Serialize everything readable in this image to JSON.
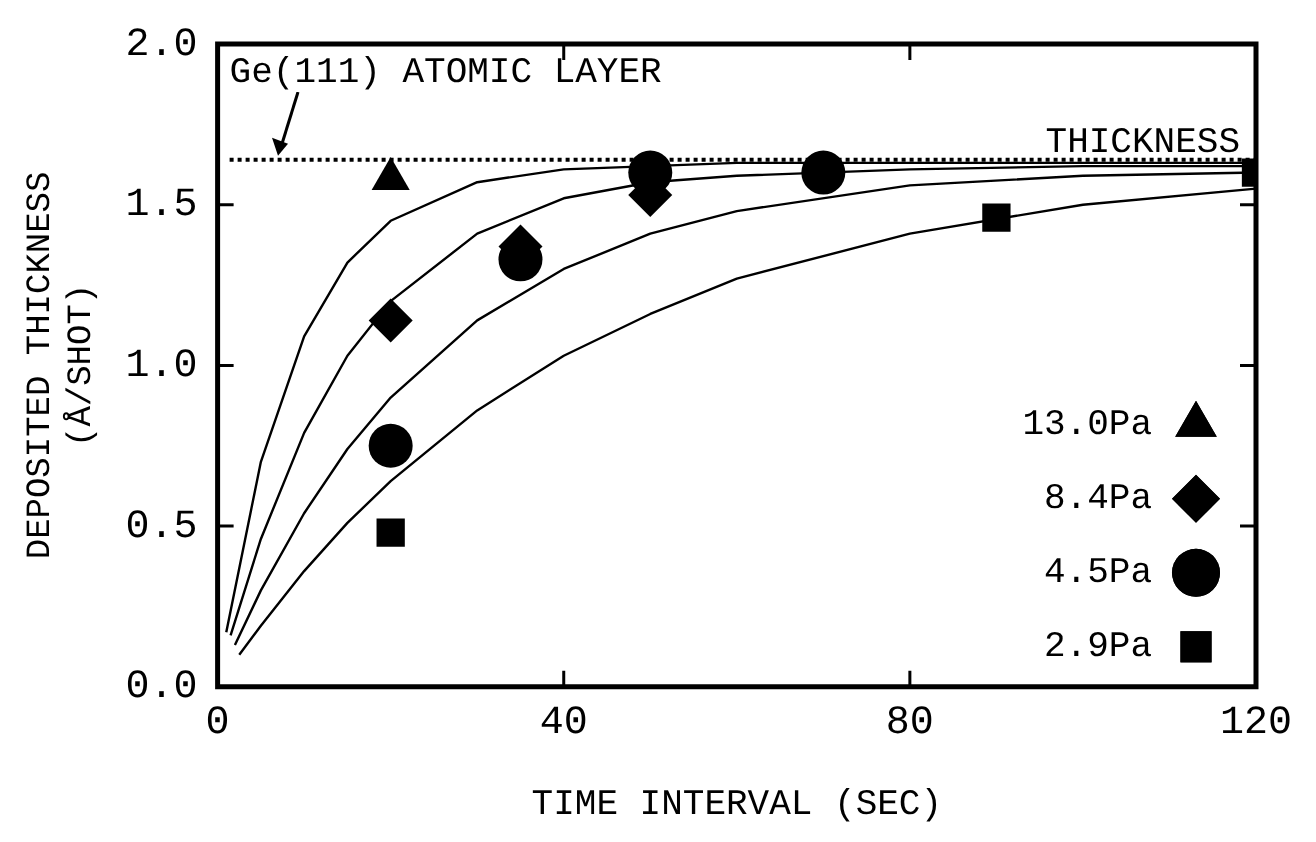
{
  "chart_data": {
    "type": "scatter",
    "xlabel": "TIME INTERVAL (SEC)",
    "ylabel": "DEPOSITED THICKNESS\n(Å/SHOT)",
    "xlim": [
      0,
      120
    ],
    "xticks": [
      0,
      40,
      80,
      120
    ],
    "ylim": [
      0,
      2.0
    ],
    "yticks": [
      {
        "value": 0,
        "label": "0.0"
      },
      {
        "value": 0.5,
        "label": "0.5"
      },
      {
        "value": 1,
        "label": "1.0"
      },
      {
        "value": 1.5,
        "label": "1.5"
      },
      {
        "value": 2,
        "label": "2.0"
      }
    ],
    "grid": false,
    "legend": "bottom right",
    "ref_lines": [
      {
        "axis": "y",
        "value": 1.64,
        "label": "Ge(111) ATOMIC LAYER THICKNESS",
        "color": "#000000",
        "line_style": "dotted"
      }
    ],
    "series": [
      {
        "name": "13.0Pa",
        "color": "#000000",
        "marker": "triangle",
        "x": [
          20
        ],
        "values": [
          1.58
        ]
      },
      {
        "name": "8.4Pa",
        "color": "#000000",
        "marker": "diamond",
        "x": [
          20,
          35,
          50
        ],
        "values": [
          1.14,
          1.37,
          1.53
        ]
      },
      {
        "name": "4.5Pa",
        "color": "#000000",
        "marker": "circle",
        "x": [
          20,
          35,
          50,
          70
        ],
        "values": [
          0.75,
          1.33,
          1.6,
          1.6
        ]
      },
      {
        "name": "2.9Pa",
        "color": "#000000",
        "marker": "square",
        "x": [
          20,
          90,
          120
        ],
        "values": [
          0.48,
          1.46,
          1.6
        ]
      },
      {
        "type": "line",
        "color": "#000000",
        "marker": "none",
        "x": [
          1,
          5,
          10,
          15,
          20,
          30,
          40,
          50,
          60,
          80,
          100,
          120
        ],
        "values": [
          0.17,
          0.7,
          1.09,
          1.32,
          1.45,
          1.57,
          1.61,
          1.62,
          1.63,
          1.63,
          1.63,
          1.63
        ]
      },
      {
        "type": "line",
        "color": "#000000",
        "marker": "none",
        "x": [
          1.5,
          5,
          10,
          15,
          20,
          30,
          40,
          50,
          60,
          80,
          100,
          120
        ],
        "values": [
          0.16,
          0.46,
          0.79,
          1.03,
          1.2,
          1.41,
          1.52,
          1.57,
          1.59,
          1.61,
          1.62,
          1.62
        ]
      },
      {
        "type": "line",
        "color": "#000000",
        "marker": "none",
        "x": [
          2,
          5,
          10,
          15,
          20,
          30,
          40,
          50,
          60,
          80,
          100,
          120
        ],
        "values": [
          0.13,
          0.3,
          0.54,
          0.74,
          0.9,
          1.14,
          1.3,
          1.41,
          1.48,
          1.56,
          1.59,
          1.6
        ]
      },
      {
        "type": "line",
        "color": "#000000",
        "marker": "none",
        "x": [
          2.5,
          5,
          10,
          15,
          20,
          30,
          40,
          50,
          60,
          80,
          100,
          120
        ],
        "values": [
          0.1,
          0.19,
          0.36,
          0.51,
          0.64,
          0.86,
          1.03,
          1.16,
          1.27,
          1.41,
          1.5,
          1.55
        ]
      }
    ]
  }
}
